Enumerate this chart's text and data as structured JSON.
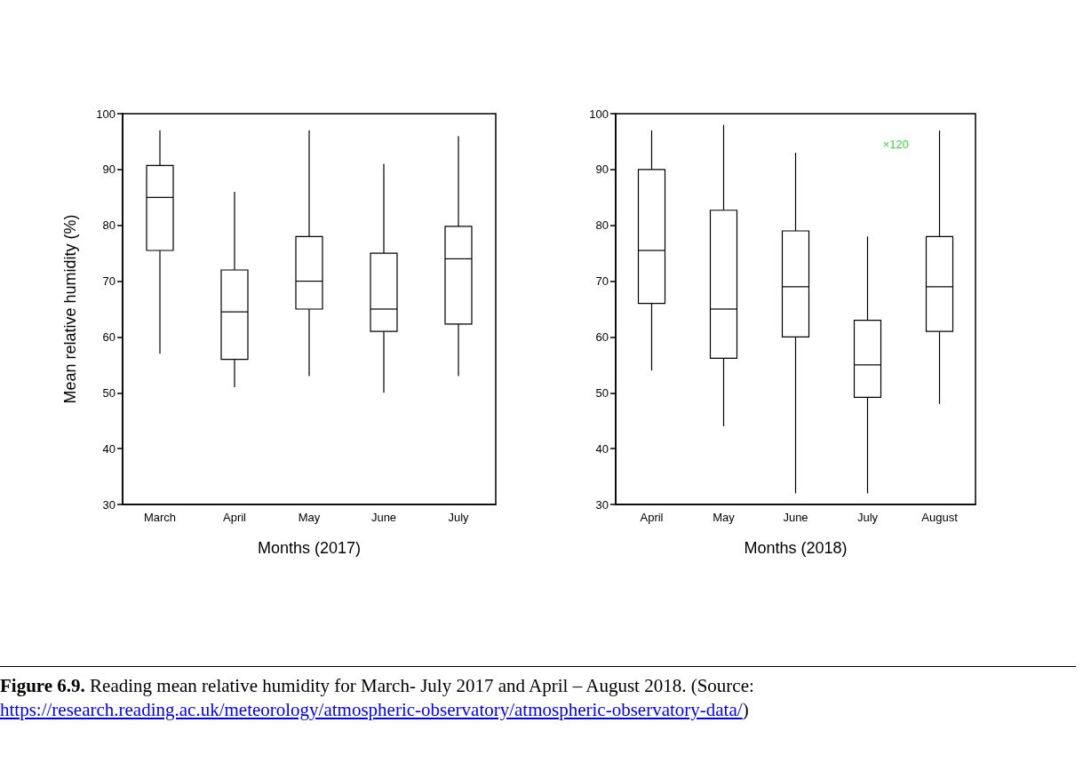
{
  "chart_data": [
    {
      "type": "box",
      "ylabel": "Mean relative humidity (%)",
      "xlabel": "Months (2017)",
      "categories": [
        "March",
        "April",
        "May",
        "June",
        "July"
      ],
      "color": "#000000",
      "ylim": [
        30,
        100
      ],
      "yticks": [
        30,
        40,
        50,
        60,
        70,
        80,
        90,
        100
      ],
      "boxes": [
        {
          "low": 57,
          "q1": 75.5,
          "median": 85,
          "q3": 90.7,
          "high": 97
        },
        {
          "low": 51,
          "q1": 56,
          "median": 64.5,
          "q3": 72,
          "high": 86
        },
        {
          "low": 53,
          "q1": 65,
          "median": 70,
          "q3": 78,
          "high": 97
        },
        {
          "low": 50,
          "q1": 61,
          "median": 65,
          "q3": 75,
          "high": 91
        },
        {
          "low": 53,
          "q1": 62.3,
          "median": 74,
          "q3": 79.8,
          "high": 96
        }
      ],
      "annotations": [
        "Figure 6.9.",
        "Reading mean relative humidity for March- July 2017 and April – August 2018. (Source:",
        "https://research.reading.ac.uk/meteorology/atmospheric-observatory/atmospheric-observatory-data/",
        ")"
      ]
    },
    {
      "type": "box",
      "xlabel": "Months (2018)",
      "categories": [
        "April",
        "May",
        "June",
        "July",
        "August"
      ],
      "color": "#000000",
      "ylim": [
        30,
        100
      ],
      "yticks": [
        30,
        40,
        50,
        60,
        70,
        80,
        90,
        100
      ],
      "boxes": [
        {
          "low": 54,
          "q1": 66,
          "median": 75.5,
          "q3": 90,
          "high": 97
        },
        {
          "low": 44,
          "q1": 56.2,
          "median": 65,
          "q3": 82.7,
          "high": 98
        },
        {
          "low": 32,
          "q1": 60,
          "median": 69,
          "q3": 79,
          "high": 93
        },
        {
          "low": 32,
          "q1": 49.2,
          "median": 55,
          "q3": 63,
          "high": 78
        },
        {
          "low": 48,
          "q1": 61,
          "median": 69,
          "q3": 78,
          "high": 97
        }
      ],
      "annotations": [
        "×120"
      ]
    }
  ]
}
